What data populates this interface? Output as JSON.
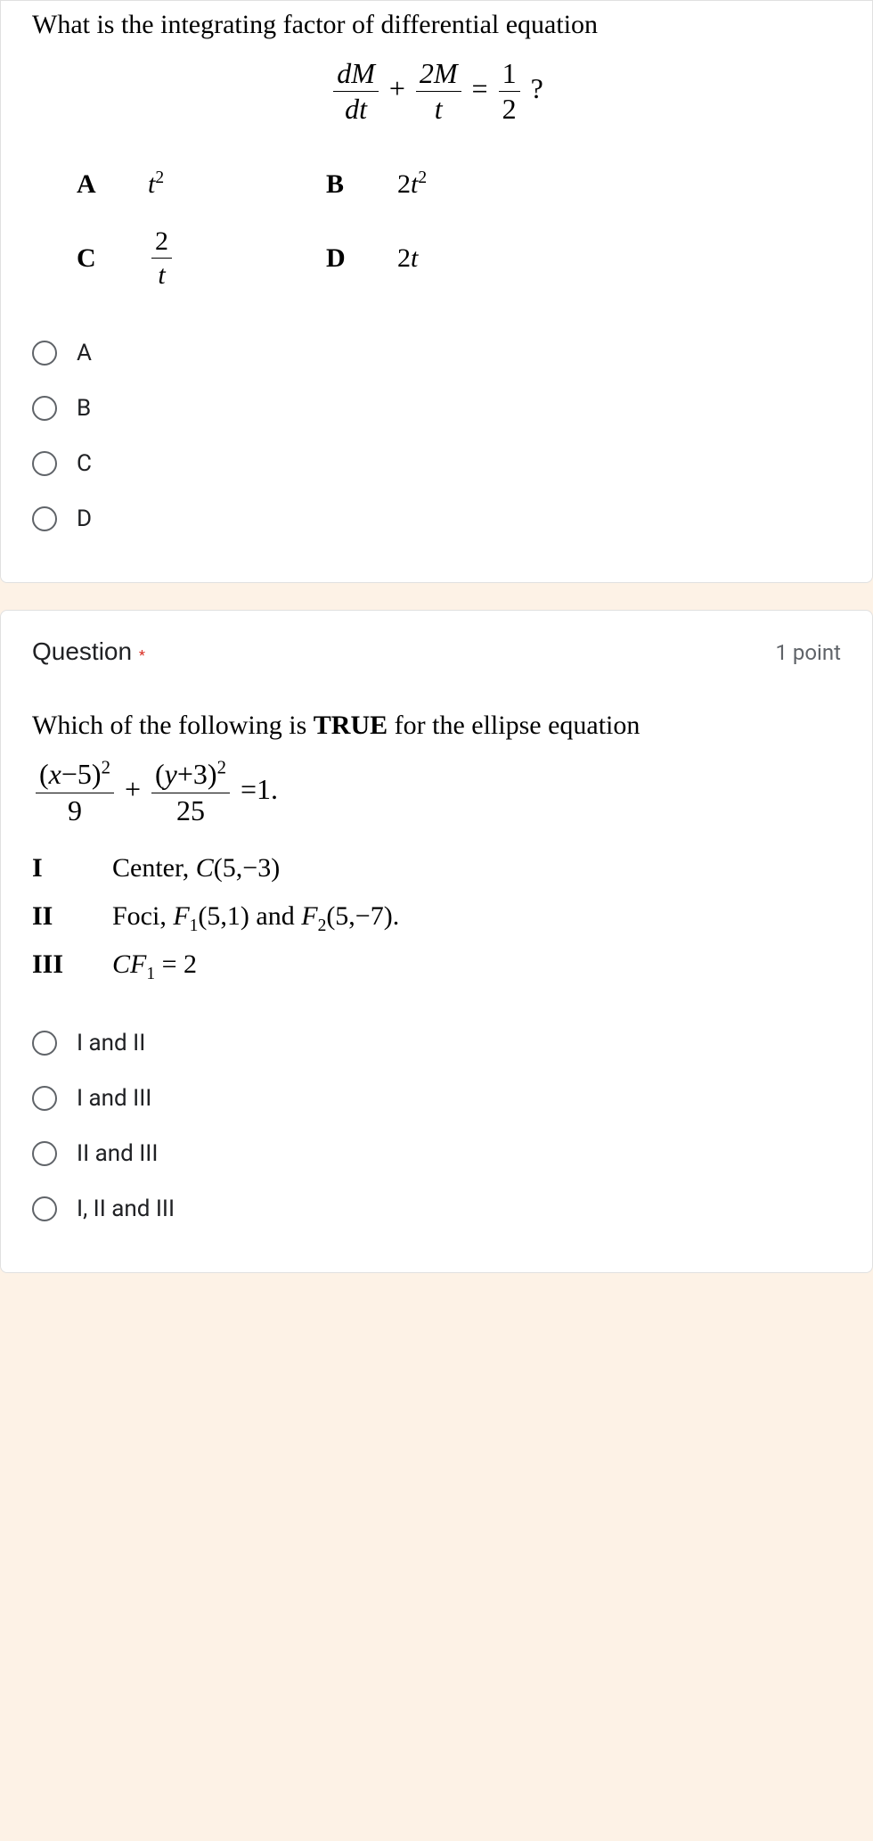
{
  "q1": {
    "prompt": "What is the integrating factor of differential equation",
    "equation": {
      "num1": "dM",
      "den1": "dt",
      "num2": "2M",
      "den2": "t",
      "num3": "1",
      "den3": "2",
      "tail": "?"
    },
    "grid": {
      "A_label": "A",
      "A_val_base": "t",
      "A_val_sup": "2",
      "B_label": "B",
      "B_val_coeff": "2",
      "B_val_base": "t",
      "B_val_sup": "2",
      "C_label": "C",
      "C_num": "2",
      "C_den": "t",
      "D_label": "D",
      "D_val_coeff": "2",
      "D_val_base": "t"
    },
    "options": {
      "a": "A",
      "b": "B",
      "c": "C",
      "d": "D"
    }
  },
  "q2": {
    "title": "Question",
    "points": "1 point",
    "prompt_pre": "Which of the following is ",
    "prompt_bold": "TRUE",
    "prompt_post": " for the ellipse equation",
    "equation": {
      "num1_l": "(",
      "num1_var": "x",
      "num1_op": "−5)",
      "num1_sup": "2",
      "den1": "9",
      "num2_l": "(",
      "num2_var": "y",
      "num2_op": "+3)",
      "num2_sup": "2",
      "den2": "25",
      "rhs": "=1."
    },
    "statements": {
      "I_label": "I",
      "I_text_pre": "Center, ",
      "I_C": "C",
      "I_coords": "(5,−3)",
      "II_label": "II",
      "II_text_pre": "Foci, ",
      "II_F1": "F",
      "II_F1s": "1",
      "II_c1": "(5,1)",
      "II_and": " and  ",
      "II_F2": "F",
      "II_F2s": "2",
      "II_c2": "(5,−7).",
      "III_label": "III",
      "III_CF": "CF",
      "III_sub": "1",
      "III_eq": " = 2"
    },
    "options": {
      "a": "I and II",
      "b": "I and III",
      "c": "II and III",
      "d": "I, II and III"
    }
  }
}
